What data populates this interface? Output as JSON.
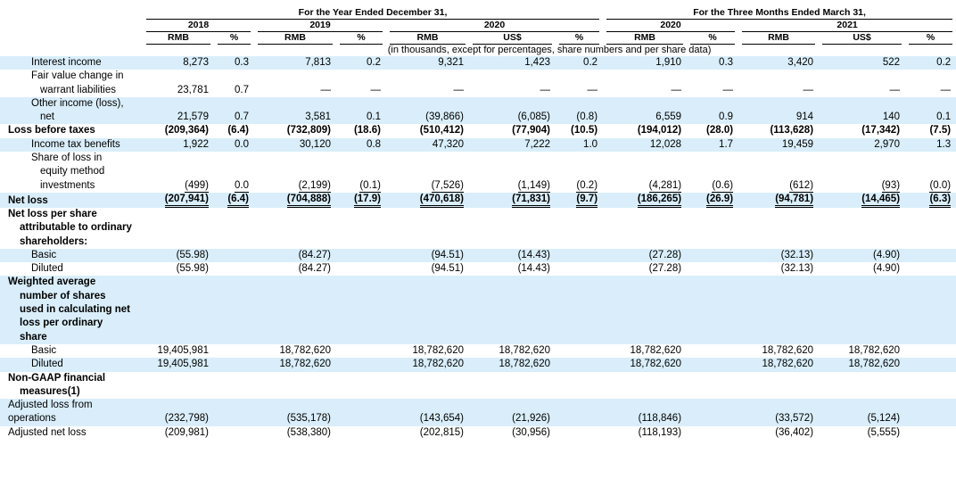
{
  "header": {
    "group_1": "For the Year Ended December 31,",
    "group_2": "For the Three Months Ended March 31,",
    "years": [
      "2018",
      "2019",
      "2020",
      "2020",
      "2021"
    ],
    "units": [
      "RMB",
      "%",
      "RMB",
      "%",
      "RMB",
      "US$",
      "%",
      "RMB",
      "%",
      "RMB",
      "US$",
      "%"
    ],
    "note": "(in thousands, except for percentages, share numbers and per share data)"
  },
  "rows": [
    {
      "label": "Interest income",
      "cells": [
        "8,273",
        "0.3",
        "7,813",
        "0.2",
        "9,321",
        "1,423",
        "0.2",
        "1,910",
        "0.3",
        "3,420",
        "522",
        "0.2"
      ]
    },
    {
      "label": "Fair value change in warrant liabilities",
      "cells": [
        "23,781",
        "0.7",
        "—",
        "—",
        "—",
        "—",
        "—",
        "—",
        "—",
        "—",
        "—",
        "—"
      ]
    },
    {
      "label": "Other income (loss), net",
      "cells": [
        "21,579",
        "0.7",
        "3,581",
        "0.1",
        "(39,866)",
        "(6,085)",
        "(0.8)",
        "6,559",
        "0.9",
        "914",
        "140",
        "0.1"
      ]
    },
    {
      "label": "Loss before taxes",
      "cells": [
        "(209,364)",
        "(6.4)",
        "(732,809)",
        "(18.6)",
        "(510,412)",
        "(77,904)",
        "(10.5)",
        "(194,012)",
        "(28.0)",
        "(113,628)",
        "(17,342)",
        "(7.5)"
      ]
    },
    {
      "label": "Income tax benefits",
      "cells": [
        "1,922",
        "0.0",
        "30,120",
        "0.8",
        "47,320",
        "7,222",
        "1.0",
        "12,028",
        "1.7",
        "19,459",
        "2,970",
        "1.3"
      ]
    },
    {
      "label": "Share of loss in equity method investments",
      "cells": [
        "(499)",
        "0.0",
        "(2,199)",
        "(0.1)",
        "(7,526)",
        "(1,149)",
        "(0.2)",
        "(4,281)",
        "(0.6)",
        "(612)",
        "(93)",
        "(0.0)"
      ]
    },
    {
      "label": "Net loss",
      "cells": [
        "(207,941)",
        "(6.4)",
        "(704,888)",
        "(17.9)",
        "(470,618)",
        "(71,831)",
        "(9.7)",
        "(186,265)",
        "(26.9)",
        "(94,781)",
        "(14,465)",
        "(6.3)"
      ]
    },
    {
      "label": "Net loss per share attributable to ordinary shareholders:",
      "cells": [
        null,
        null,
        null,
        null,
        null,
        null,
        null,
        null,
        null,
        null,
        null,
        null
      ]
    },
    {
      "label": "Basic",
      "cells": [
        "(55.98)",
        null,
        "(84.27)",
        null,
        "(94.51)",
        "(14.43)",
        null,
        "(27.28)",
        null,
        "(32.13)",
        "(4.90)",
        null
      ]
    },
    {
      "label": "Diluted",
      "cells": [
        "(55.98)",
        null,
        "(84.27)",
        null,
        "(94.51)",
        "(14.43)",
        null,
        "(27.28)",
        null,
        "(32.13)",
        "(4.90)",
        null
      ]
    },
    {
      "label": "Weighted average number of shares used in calculating net loss per ordinary share",
      "cells": [
        null,
        null,
        null,
        null,
        null,
        null,
        null,
        null,
        null,
        null,
        null,
        null
      ]
    },
    {
      "label": "Basic",
      "cells": [
        "19,405,981",
        null,
        "18,782,620",
        null,
        "18,782,620",
        "18,782,620",
        null,
        "18,782,620",
        null,
        "18,782,620",
        "18,782,620",
        null
      ]
    },
    {
      "label": "Diluted",
      "cells": [
        "19,405,981",
        null,
        "18,782,620",
        null,
        "18,782,620",
        "18,782,620",
        null,
        "18,782,620",
        null,
        "18,782,620",
        "18,782,620",
        null
      ]
    },
    {
      "label": "Non-GAAP financial measures(1)",
      "cells": [
        null,
        null,
        null,
        null,
        null,
        null,
        null,
        null,
        null,
        null,
        null,
        null
      ]
    },
    {
      "label": "Adjusted loss from operations",
      "cells": [
        "(232,798)",
        null,
        "(535,178)",
        null,
        "(143,654)",
        "(21,926)",
        null,
        "(118,846)",
        null,
        "(33,572)",
        "(5,124)",
        null
      ]
    },
    {
      "label": "Adjusted net loss",
      "cells": [
        "(209,981)",
        null,
        "(538,380)",
        null,
        "(202,815)",
        "(30,956)",
        null,
        "(118,193)",
        null,
        "(36,402)",
        "(5,555)",
        null
      ]
    }
  ]
}
